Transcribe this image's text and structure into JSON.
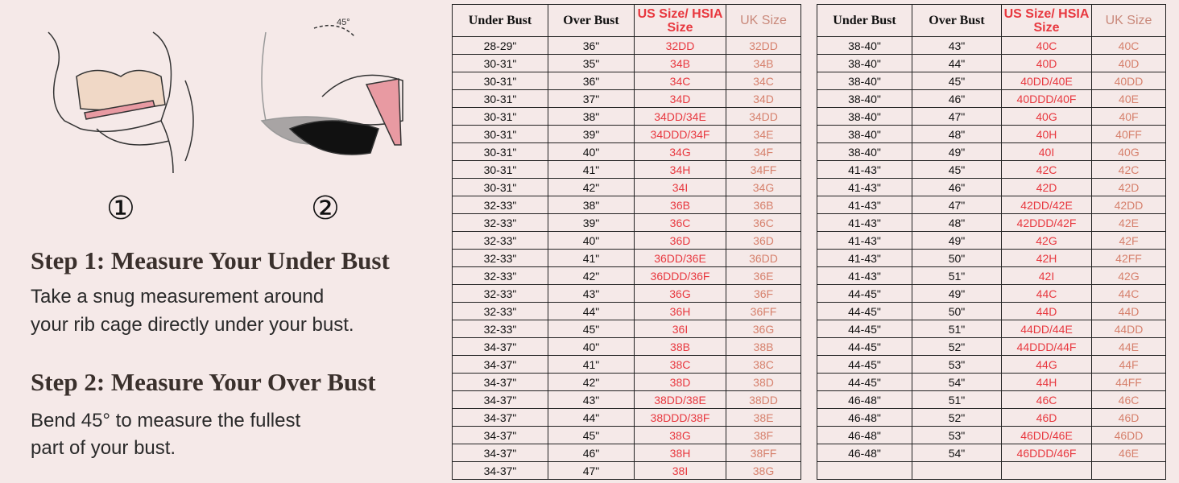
{
  "illustrations": [
    {
      "number": "①"
    },
    {
      "number": "②",
      "angle": "45°"
    }
  ],
  "steps": [
    {
      "title": "Step 1: Measure Your Under Bust",
      "lines": [
        "Take a snug measurement around",
        "your rib cage directly under your bust."
      ]
    },
    {
      "title": "Step 2: Measure Your Over Bust",
      "lines": [
        "Bend 45° to measure the fullest",
        "part of your bust."
      ]
    }
  ],
  "tables": [
    {
      "header": [
        "Under Bust",
        "Over Bust",
        "US Size/ HSIA Size",
        "UK Size"
      ],
      "rows": [
        [
          "28-29\"",
          "36\"",
          "32DD",
          "32DD"
        ],
        [
          "30-31\"",
          "35\"",
          "34B",
          "34B"
        ],
        [
          "30-31\"",
          "36\"",
          "34C",
          "34C"
        ],
        [
          "30-31\"",
          "37\"",
          "34D",
          "34D"
        ],
        [
          "30-31\"",
          "38\"",
          "34DD/34E",
          "34DD"
        ],
        [
          "30-31\"",
          "39\"",
          "34DDD/34F",
          "34E"
        ],
        [
          "30-31\"",
          "40\"",
          "34G",
          "34F"
        ],
        [
          "30-31\"",
          "41\"",
          "34H",
          "34FF"
        ],
        [
          "30-31\"",
          "42\"",
          "34I",
          "34G"
        ],
        [
          "32-33\"",
          "38\"",
          "36B",
          "36B"
        ],
        [
          "32-33\"",
          "39\"",
          "36C",
          "36C"
        ],
        [
          "32-33\"",
          "40\"",
          "36D",
          "36D"
        ],
        [
          "32-33\"",
          "41\"",
          "36DD/36E",
          "36DD"
        ],
        [
          "32-33\"",
          "42\"",
          "36DDD/36F",
          "36E"
        ],
        [
          "32-33\"",
          "43\"",
          "36G",
          "36F"
        ],
        [
          "32-33\"",
          "44\"",
          "36H",
          "36FF"
        ],
        [
          "32-33\"",
          "45\"",
          "36I",
          "36G"
        ],
        [
          "34-37\"",
          "40\"",
          "38B",
          "38B"
        ],
        [
          "34-37\"",
          "41\"",
          "38C",
          "38C"
        ],
        [
          "34-37\"",
          "42\"",
          "38D",
          "38D"
        ],
        [
          "34-37\"",
          "43\"",
          "38DD/38E",
          "38DD"
        ],
        [
          "34-37\"",
          "44\"",
          "38DDD/38F",
          "38E"
        ],
        [
          "34-37\"",
          "45\"",
          "38G",
          "38F"
        ],
        [
          "34-37\"",
          "46\"",
          "38H",
          "38FF"
        ],
        [
          "34-37\"",
          "47\"",
          "38I",
          "38G"
        ]
      ]
    },
    {
      "header": [
        "Under Bust",
        "Over Bust",
        "US Size/ HSIA Size",
        "UK Size"
      ],
      "rows": [
        [
          "38-40\"",
          "43\"",
          "40C",
          "40C"
        ],
        [
          "38-40\"",
          "44\"",
          "40D",
          "40D"
        ],
        [
          "38-40\"",
          "45\"",
          "40DD/40E",
          "40DD"
        ],
        [
          "38-40\"",
          "46\"",
          "40DDD/40F",
          "40E"
        ],
        [
          "38-40\"",
          "47\"",
          "40G",
          "40F"
        ],
        [
          "38-40\"",
          "48\"",
          "40H",
          "40FF"
        ],
        [
          "38-40\"",
          "49\"",
          "40I",
          "40G"
        ],
        [
          "41-43\"",
          "45\"",
          "42C",
          "42C"
        ],
        [
          "41-43\"",
          "46\"",
          "42D",
          "42D"
        ],
        [
          "41-43\"",
          "47\"",
          "42DD/42E",
          "42DD"
        ],
        [
          "41-43\"",
          "48\"",
          "42DDD/42F",
          "42E"
        ],
        [
          "41-43\"",
          "49\"",
          "42G",
          "42F"
        ],
        [
          "41-43\"",
          "50\"",
          "42H",
          "42FF"
        ],
        [
          "41-43\"",
          "51\"",
          "42I",
          "42G"
        ],
        [
          "44-45\"",
          "49\"",
          "44C",
          "44C"
        ],
        [
          "44-45\"",
          "50\"",
          "44D",
          "44D"
        ],
        [
          "44-45\"",
          "51\"",
          "44DD/44E",
          "44DD"
        ],
        [
          "44-45\"",
          "52\"",
          "44DDD/44F",
          "44E"
        ],
        [
          "44-45\"",
          "53\"",
          "44G",
          "44F"
        ],
        [
          "44-45\"",
          "54\"",
          "44H",
          "44FF"
        ],
        [
          "46-48\"",
          "51\"",
          "46C",
          "46C"
        ],
        [
          "46-48\"",
          "52\"",
          "46D",
          "46D"
        ],
        [
          "46-48\"",
          "53\"",
          "46DD/46E",
          "46DD"
        ],
        [
          "46-48\"",
          "54\"",
          "46DDD/46F",
          "46E"
        ]
      ]
    }
  ]
}
